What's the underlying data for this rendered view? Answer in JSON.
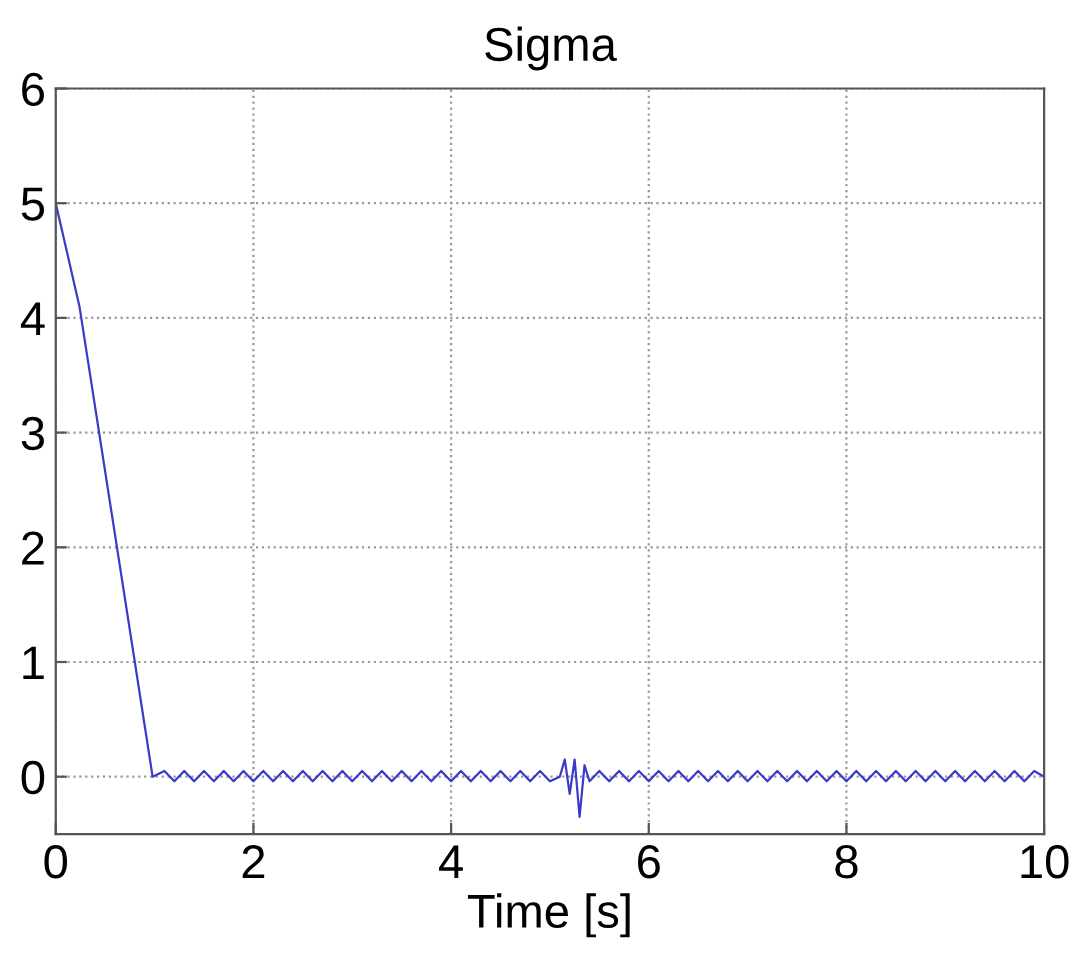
{
  "chart_data": {
    "type": "line",
    "title": "Sigma",
    "xlabel": "Time [s]",
    "x": [
      0,
      0.24,
      0.8,
      0.98,
      1.1,
      1.2,
      1.3,
      1.4,
      1.5,
      1.6,
      1.7,
      1.8,
      1.9,
      2.0,
      2.1,
      2.2,
      2.3,
      2.4,
      2.5,
      2.6,
      2.7,
      2.8,
      2.9,
      3.0,
      3.1,
      3.2,
      3.3,
      3.4,
      3.5,
      3.6,
      3.7,
      3.8,
      3.9,
      4.0,
      4.1,
      4.2,
      4.3,
      4.4,
      4.5,
      4.6,
      4.7,
      4.8,
      4.9,
      5.0,
      5.1,
      5.15,
      5.2,
      5.25,
      5.3,
      5.35,
      5.4,
      5.5,
      5.6,
      5.7,
      5.8,
      5.9,
      6.0,
      6.1,
      6.2,
      6.3,
      6.4,
      6.5,
      6.6,
      6.7,
      6.8,
      6.9,
      7.0,
      7.1,
      7.2,
      7.3,
      7.4,
      7.5,
      7.6,
      7.7,
      7.8,
      7.9,
      8.0,
      8.1,
      8.2,
      8.3,
      8.4,
      8.5,
      8.6,
      8.7,
      8.8,
      8.9,
      9.0,
      9.1,
      9.2,
      9.3,
      9.4,
      9.5,
      9.6,
      9.7,
      9.8,
      9.9,
      10.0
    ],
    "series": [
      {
        "color": "#3a3ac8",
        "values": [
          5,
          4.1,
          1.0,
          0,
          0.05,
          -0.04,
          0.05,
          -0.04,
          0.05,
          -0.04,
          0.05,
          -0.04,
          0.05,
          -0.04,
          0.05,
          -0.04,
          0.05,
          -0.04,
          0.05,
          -0.04,
          0.05,
          -0.04,
          0.05,
          -0.04,
          0.05,
          -0.04,
          0.05,
          -0.04,
          0.05,
          -0.04,
          0.05,
          -0.04,
          0.05,
          -0.04,
          0.05,
          -0.04,
          0.05,
          -0.04,
          0.05,
          -0.04,
          0.05,
          -0.04,
          0.05,
          -0.04,
          0.0,
          0.15,
          -0.15,
          0.15,
          -0.35,
          0.1,
          -0.04,
          0.05,
          -0.04,
          0.05,
          -0.04,
          0.05,
          -0.04,
          0.05,
          -0.04,
          0.05,
          -0.04,
          0.05,
          -0.04,
          0.05,
          -0.04,
          0.05,
          -0.04,
          0.05,
          -0.04,
          0.05,
          -0.04,
          0.05,
          -0.04,
          0.05,
          -0.04,
          0.05,
          -0.04,
          0.05,
          -0.04,
          0.05,
          -0.04,
          0.05,
          -0.04,
          0.05,
          -0.04,
          0.05,
          -0.04,
          0.05,
          -0.04,
          0.05,
          -0.04,
          0.05,
          -0.04,
          0.05,
          -0.04,
          0.05,
          0.0
        ]
      }
    ],
    "xlim": [
      0,
      10
    ],
    "ylim": [
      -0.5,
      6
    ],
    "xticks": [
      0,
      2,
      4,
      6,
      8,
      10
    ],
    "yticks": [
      0,
      1,
      2,
      3,
      4,
      5,
      6
    ],
    "grid": true,
    "line_style": "solid"
  }
}
